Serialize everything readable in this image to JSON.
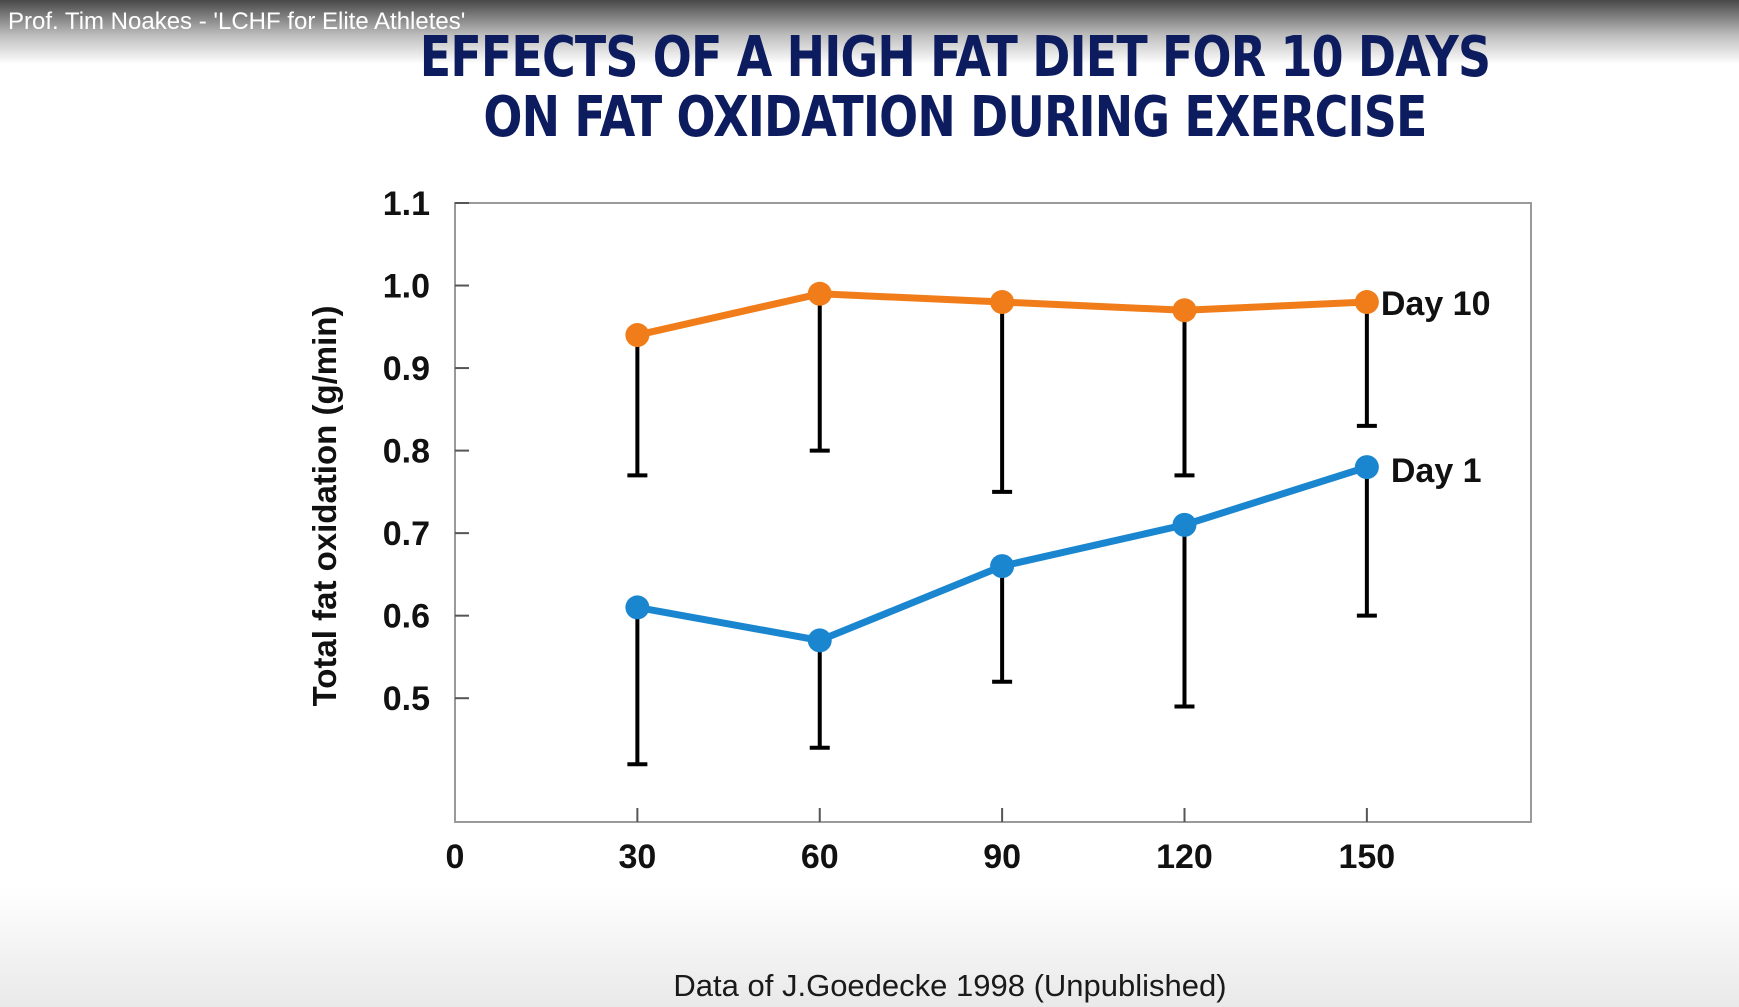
{
  "video": {
    "title": "Prof. Tim Noakes - 'LCHF for Elite Athletes'"
  },
  "slide": {
    "title": "EFFECTS OF A HIGH FAT DIET FOR 10 DAYS ON FAT OXIDATION DURING EXERCISE",
    "caption": "Data of J.Goedecke 1998 (Unpublished)"
  },
  "chart_data": {
    "type": "line",
    "title": "EFFECTS OF A HIGH FAT DIET FOR 10 DAYS ON FAT OXIDATION DURING EXERCISE",
    "xlabel": "",
    "ylabel": "Total fat oxidation (g/min)",
    "x": [
      30,
      60,
      90,
      120,
      150
    ],
    "xlim": [
      0,
      177
    ],
    "ylim": [
      0.35,
      1.1
    ],
    "x_ticks": [
      "0",
      "30",
      "60",
      "90",
      "120",
      "150"
    ],
    "x_tick_values": [
      0,
      30,
      60,
      90,
      120,
      150
    ],
    "y_ticks": [
      "0.5",
      "0.6",
      "0.7",
      "0.8",
      "0.9",
      "1.0",
      "1.1"
    ],
    "y_tick_values": [
      0.5,
      0.6,
      0.7,
      0.8,
      0.9,
      1.0,
      1.1
    ],
    "grid": false,
    "legend": "inline labels at right end of each line",
    "series": [
      {
        "name": "Day 10",
        "color": "#f07d1a",
        "values": [
          0.94,
          0.99,
          0.98,
          0.97,
          0.98
        ],
        "error_low": [
          0.77,
          0.8,
          0.75,
          0.77,
          0.83
        ]
      },
      {
        "name": "Day 1",
        "color": "#1a86d0",
        "values": [
          0.61,
          0.57,
          0.66,
          0.71,
          0.78
        ],
        "error_low": [
          0.42,
          0.44,
          0.52,
          0.49,
          0.6
        ]
      }
    ]
  }
}
